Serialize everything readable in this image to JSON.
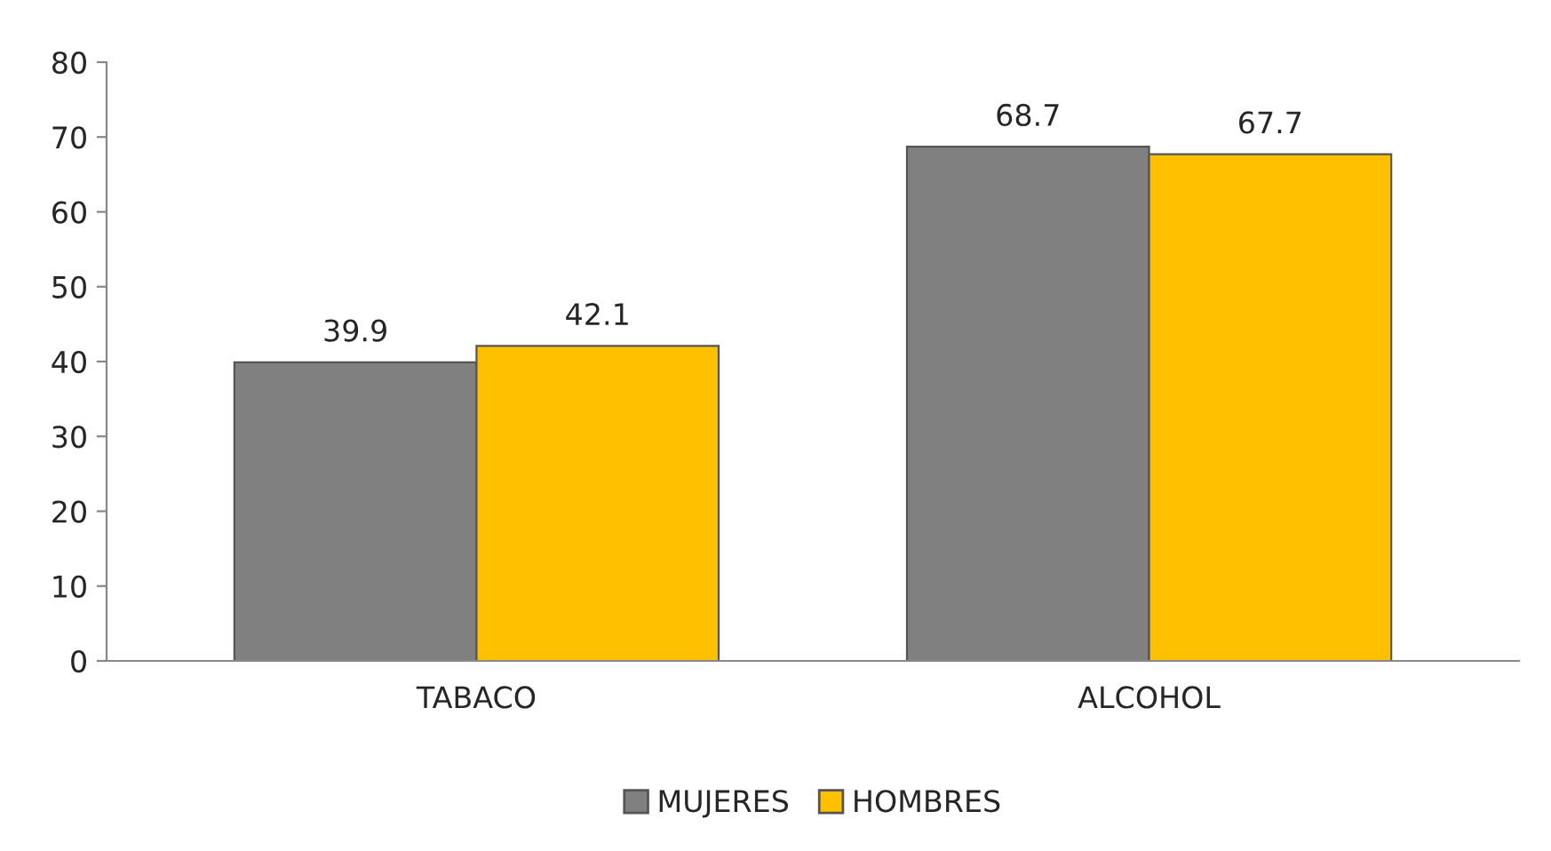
{
  "chart_data": {
    "type": "bar",
    "categories": [
      "TABACO",
      "ALCOHOL"
    ],
    "series": [
      {
        "name": "MUJERES",
        "color": "#808080",
        "values": [
          39.9,
          68.7
        ]
      },
      {
        "name": "HOMBRES",
        "color": "#ffc000",
        "values": [
          42.1,
          67.7
        ]
      }
    ],
    "ylim": [
      0,
      80
    ],
    "yticks": [
      0,
      10,
      20,
      30,
      40,
      50,
      60,
      70,
      80
    ],
    "data_labels": true,
    "legend": "bottom",
    "grid": false
  }
}
